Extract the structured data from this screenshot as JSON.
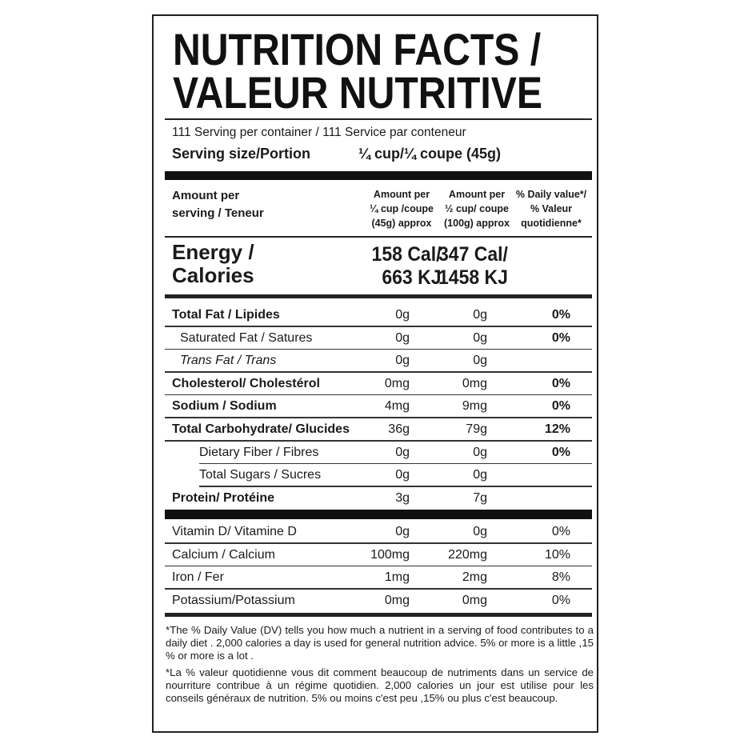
{
  "title": {
    "line1": "NUTRITION FACTS /",
    "line2": "VALEUR NUTRITIVE"
  },
  "servings_per_container": "111 Serving per container / 111 Service par conteneur",
  "serving_size": {
    "label": "Serving size/Portion",
    "value": "¼ cup/¼ coupe (45g)"
  },
  "column_headers": {
    "label": [
      "Amount per",
      "serving / Teneur"
    ],
    "col1": [
      "Amount per",
      "¼ cup /coupe",
      "(45g) approx"
    ],
    "col2": [
      "Amount per",
      "½ cup/ coupe",
      "(100g) approx"
    ],
    "col3": [
      "% Daily value*/",
      "% Valeur",
      "quotidienne*"
    ]
  },
  "energy": {
    "label": [
      "Energy /",
      "Calories"
    ],
    "col1": [
      "158 Cal/",
      "663 KJ"
    ],
    "col2": [
      "347 Cal/",
      "1458 KJ"
    ]
  },
  "nutrients": [
    {
      "label": "Total Fat / Lipides",
      "v1": "0g",
      "v2": "0g",
      "dv": "0%"
    },
    {
      "label": "Saturated Fat / Satures",
      "v1": "0g",
      "v2": "0g",
      "dv": "0%"
    },
    {
      "label": "Trans Fat / Trans",
      "v1": "0g",
      "v2": "0g",
      "dv": ""
    },
    {
      "label": "Cholesterol/ Cholestérol",
      "v1": "0mg",
      "v2": "0mg",
      "dv": "0%"
    },
    {
      "label": "Sodium / Sodium",
      "v1": "4mg",
      "v2": "9mg",
      "dv": "0%"
    },
    {
      "label": "Total Carbohydrate/ Glucides",
      "v1": "36g",
      "v2": "79g",
      "dv": "12%"
    },
    {
      "label": "Dietary Fiber  / Fibres",
      "v1": "0g",
      "v2": "0g",
      "dv": "0%"
    },
    {
      "label": "Total Sugars / Sucres",
      "v1": "0g",
      "v2": "0g",
      "dv": ""
    },
    {
      "label": "Protein/ Protéine",
      "v1": "3g",
      "v2": "7g",
      "dv": ""
    }
  ],
  "vitamins": [
    {
      "label": "Vitamin D/ Vitamine D",
      "v1": "0g",
      "v2": "0g",
      "dv": "0%"
    },
    {
      "label": "Calcium / Calcium",
      "v1": "100mg",
      "v2": "220mg",
      "dv": "10%"
    },
    {
      "label": "Iron / Fer",
      "v1": "1mg",
      "v2": "2mg",
      "dv": "8%"
    },
    {
      "label": "Potassium/Potassium",
      "v1": "0mg",
      "v2": "0mg",
      "dv": "0%"
    }
  ],
  "footnotes": {
    "en": "*The % Daily Value (DV) tells you how much a nutrient in a serving of food contributes to a daily diet . 2,000 calories a day is used for general nutrition advice.  5% or more is a little ,15 % or more is a lot .",
    "fr": "*La  % valeur quotidienne vous dit comment beaucoup de nutriments dans un service de nourriture contribue à un régime quotidien. 2,000 calories un jour est utilise pour les conseils généraux de nutrition.  5% ou moins c'est peu ,15% ou plus c'est beaucoup."
  }
}
